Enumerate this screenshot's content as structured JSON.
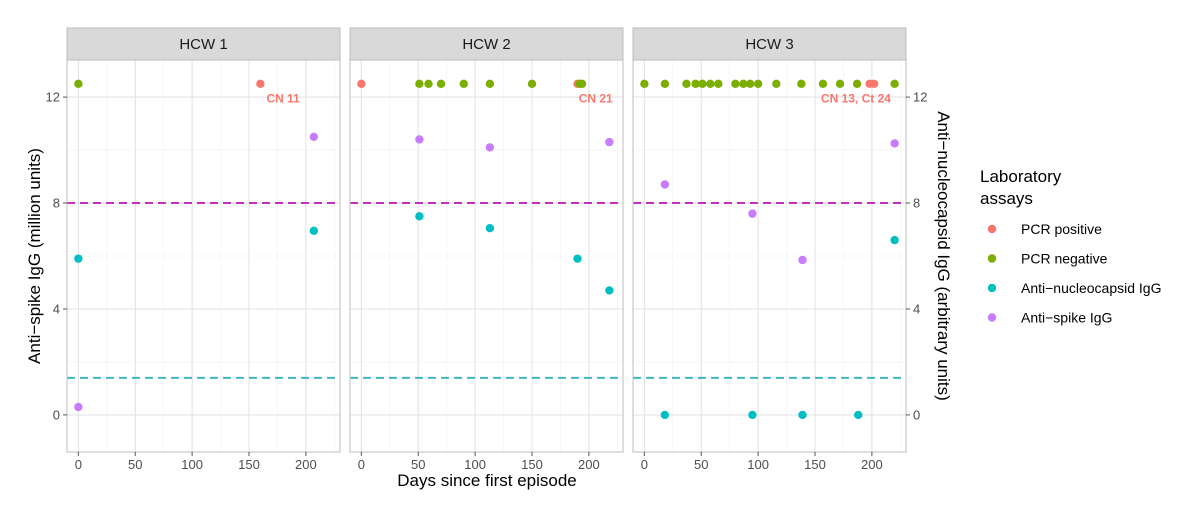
{
  "chart_data": {
    "type": "scatter",
    "xlabel": "Days since first episode",
    "ylabel_left": "Anti−spike IgG (million units)",
    "ylabel_right": "Anti−nucleocapsid IgG (arbitrary units)",
    "xlim": [
      -10,
      230
    ],
    "ylim": [
      -1.4,
      13.4
    ],
    "x_ticks": [
      0,
      50,
      100,
      150,
      200
    ],
    "y_ticks": [
      0,
      4,
      8,
      12
    ],
    "reference_lines": [
      {
        "name": "spike-threshold",
        "y": 8,
        "color": "#c42fbf"
      },
      {
        "name": "nucleocapsid-threshold",
        "y": 1.4,
        "color": "#3bb7c4"
      }
    ],
    "legend": {
      "title_line1": "Laboratory",
      "title_line2": "assays",
      "position": "right",
      "entries": [
        {
          "label": "PCR positive",
          "color": "#F8766D"
        },
        {
          "label": "PCR negative",
          "color": "#7CAE00"
        },
        {
          "label": "Anti−nucleocapsid IgG",
          "color": "#00BFC4"
        },
        {
          "label": "Anti−spike IgG",
          "color": "#C77CFF"
        }
      ]
    },
    "panels": [
      {
        "title": "HCW 1",
        "series": [
          {
            "name": "PCR positive",
            "x": [
              160
            ],
            "y": [
              12.5
            ]
          },
          {
            "name": "PCR negative",
            "x": [
              0
            ],
            "y": [
              12.5
            ]
          },
          {
            "name": "Anti−nucleocapsid IgG",
            "x": [
              0,
              207
            ],
            "y": [
              5.9,
              6.95
            ]
          },
          {
            "name": "Anti−spike IgG",
            "x": [
              0,
              207
            ],
            "y": [
              0.3,
              10.5
            ]
          }
        ],
        "annotations": [
          {
            "text": "CN 11",
            "x": 180,
            "y": 11.95
          }
        ]
      },
      {
        "title": "HCW 2",
        "series": [
          {
            "name": "PCR positive",
            "x": [
              0,
              190
            ],
            "y": [
              12.5,
              12.5
            ]
          },
          {
            "name": "PCR negative",
            "x": [
              51,
              59,
              70,
              90,
              113,
              150,
              192,
              194
            ],
            "y": [
              12.5,
              12.5,
              12.5,
              12.5,
              12.5,
              12.5,
              12.5,
              12.5
            ]
          },
          {
            "name": "Anti−nucleocapsid IgG",
            "x": [
              51,
              113,
              190,
              218
            ],
            "y": [
              7.5,
              7.05,
              5.9,
              4.7
            ]
          },
          {
            "name": "Anti−spike IgG",
            "x": [
              51,
              113,
              218
            ],
            "y": [
              10.4,
              10.1,
              10.3
            ]
          }
        ],
        "annotations": [
          {
            "text": "CN 21",
            "x": 206,
            "y": 11.95
          }
        ]
      },
      {
        "title": "HCW 3",
        "series": [
          {
            "name": "PCR positive",
            "x": [
              198,
              202
            ],
            "y": [
              12.5,
              12.5
            ]
          },
          {
            "name": "PCR negative",
            "x": [
              0,
              18,
              37,
              45,
              51,
              58,
              65,
              80,
              87,
              93,
              100,
              116,
              138,
              157,
              172,
              187,
              220
            ],
            "y": [
              12.5,
              12.5,
              12.5,
              12.5,
              12.5,
              12.5,
              12.5,
              12.5,
              12.5,
              12.5,
              12.5,
              12.5,
              12.5,
              12.5,
              12.5,
              12.5,
              12.5
            ]
          },
          {
            "name": "Anti−nucleocapsid IgG",
            "x": [
              18,
              95,
              139,
              188,
              220
            ],
            "y": [
              0,
              0,
              0,
              0,
              6.6
            ]
          },
          {
            "name": "Anti−spike IgG",
            "x": [
              18,
              95,
              139,
              220
            ],
            "y": [
              8.7,
              7.6,
              5.85,
              10.25
            ]
          }
        ],
        "annotations": [
          {
            "text": "CN 13, Ct 24",
            "x": 186,
            "y": 11.95
          }
        ]
      }
    ]
  }
}
